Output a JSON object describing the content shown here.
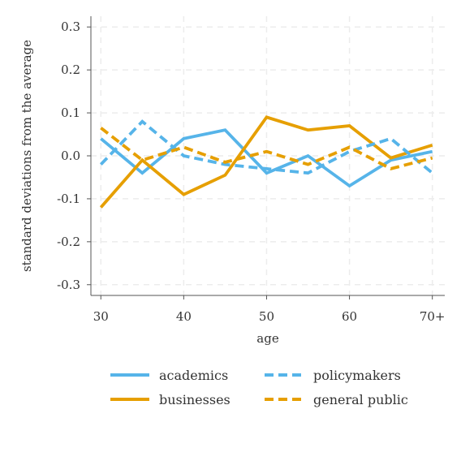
{
  "chart_data": {
    "type": "line",
    "xlabel": "age",
    "ylabel": "standard deviations from the average",
    "xlim": [
      28.8,
      71.5
    ],
    "ylim": [
      -0.325,
      0.325
    ],
    "x_ticks": [
      {
        "value": 30,
        "label": "30"
      },
      {
        "value": 40,
        "label": "40"
      },
      {
        "value": 50,
        "label": "50"
      },
      {
        "value": 60,
        "label": "60"
      },
      {
        "value": 70,
        "label": "70+"
      }
    ],
    "y_ticks": [
      {
        "value": 0.3,
        "label": "0.3"
      },
      {
        "value": 0.2,
        "label": "0.2"
      },
      {
        "value": 0.1,
        "label": "0.1"
      },
      {
        "value": 0.0,
        "label": "0.0"
      },
      {
        "value": -0.1,
        "label": "-0.1"
      },
      {
        "value": -0.2,
        "label": "-0.2"
      },
      {
        "value": -0.3,
        "label": "-0.3"
      }
    ],
    "grid": true,
    "legend_position": "bottom",
    "series": [
      {
        "name": "academics",
        "color": "#56b4e9",
        "dashed": false,
        "x": [
          30,
          35,
          40,
          45,
          50,
          55,
          60,
          65,
          70
        ],
        "y": [
          0.04,
          -0.04,
          0.04,
          0.06,
          -0.04,
          0.0,
          -0.07,
          -0.01,
          0.01
        ]
      },
      {
        "name": "businesses",
        "color": "#e69f00",
        "dashed": false,
        "x": [
          30,
          35,
          40,
          45,
          50,
          55,
          60,
          65,
          70
        ],
        "y": [
          -0.12,
          -0.01,
          -0.09,
          -0.045,
          0.09,
          0.06,
          0.07,
          -0.005,
          0.025
        ]
      },
      {
        "name": "policymakers",
        "color": "#56b4e9",
        "dashed": true,
        "x": [
          30,
          35,
          40,
          45,
          50,
          55,
          60,
          65,
          70
        ],
        "y": [
          -0.02,
          0.08,
          0.0,
          -0.02,
          -0.03,
          -0.04,
          0.01,
          0.04,
          -0.04
        ]
      },
      {
        "name": "general public",
        "color": "#e69f00",
        "dashed": true,
        "x": [
          30,
          35,
          40,
          45,
          50,
          55,
          60,
          65,
          70
        ],
        "y": [
          0.065,
          -0.01,
          0.02,
          -0.015,
          0.01,
          -0.02,
          0.02,
          -0.03,
          -0.005
        ]
      }
    ]
  }
}
